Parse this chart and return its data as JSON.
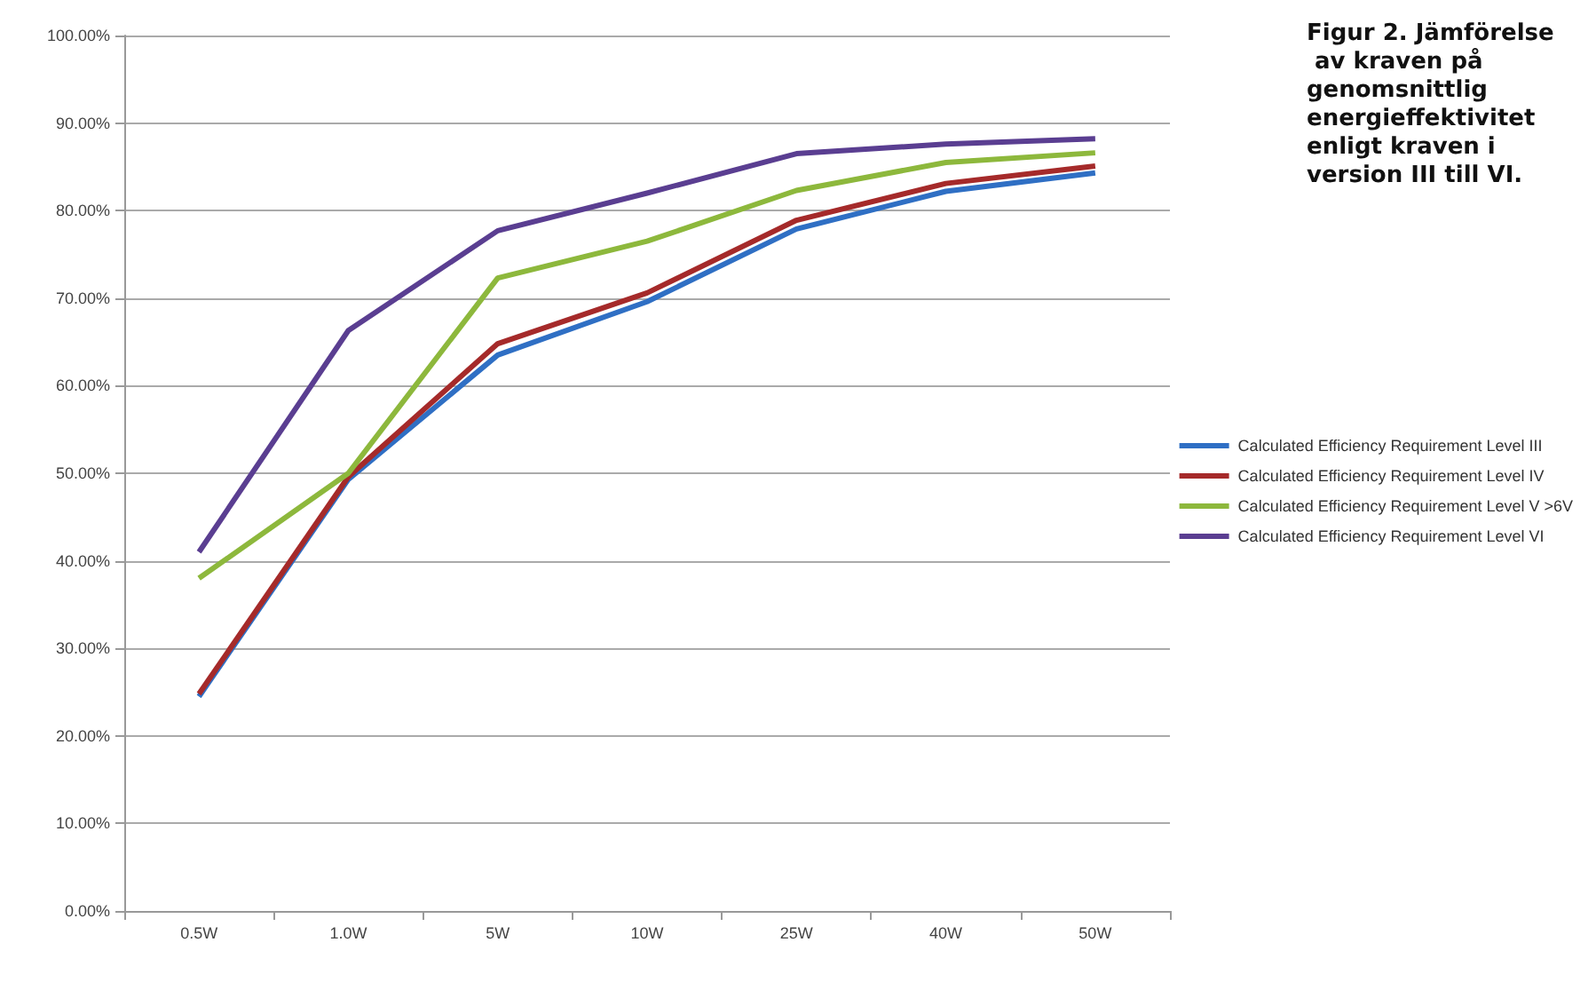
{
  "chart_data": {
    "type": "line",
    "title": "Figur 2. Jämförelse av kraven på genomsnittlig energieffektivitet enligt kraven i version III till VI.",
    "categories": [
      "0.5W",
      "1.0W",
      "5W",
      "10W",
      "25W",
      "40W",
      "50W"
    ],
    "series": [
      {
        "name": "Calculated Efficiency Requirement Level III",
        "color": "#2f6fc4",
        "values": [
          24.5,
          49.3,
          63.5,
          69.6,
          77.9,
          82.2,
          84.3
        ]
      },
      {
        "name": "Calculated Efficiency Requirement Level IV",
        "color": "#a52a2a",
        "values": [
          24.8,
          49.6,
          64.8,
          70.6,
          78.9,
          83.1,
          85.1
        ]
      },
      {
        "name": "Calculated Efficiency Requirement Level V >6V",
        "color": "#8db83c",
        "values": [
          38,
          50,
          72.3,
          76.5,
          82.3,
          85.5,
          86.6
        ]
      },
      {
        "name": "Calculated Efficiency Requirement Level VI",
        "color": "#5a3e91",
        "values": [
          41,
          66.3,
          77.7,
          82,
          86.5,
          87.6,
          88.2
        ]
      }
    ],
    "ylim": [
      0,
      100
    ],
    "yticks": [
      {
        "value": 0,
        "label": "0.00%"
      },
      {
        "value": 10,
        "label": "10.00%"
      },
      {
        "value": 20,
        "label": "20.00%"
      },
      {
        "value": 30,
        "label": "30.00%"
      },
      {
        "value": 40,
        "label": "40.00%"
      },
      {
        "value": 50,
        "label": "50.00%"
      },
      {
        "value": 60,
        "label": "60.00%"
      },
      {
        "value": 70,
        "label": "70.00%"
      },
      {
        "value": 80,
        "label": "80.00%"
      },
      {
        "value": 90,
        "label": "90.00%"
      },
      {
        "value": 100,
        "label": "100.00%"
      }
    ],
    "grid": "y",
    "legend": "right",
    "marker": "none",
    "line_style": "solid"
  }
}
